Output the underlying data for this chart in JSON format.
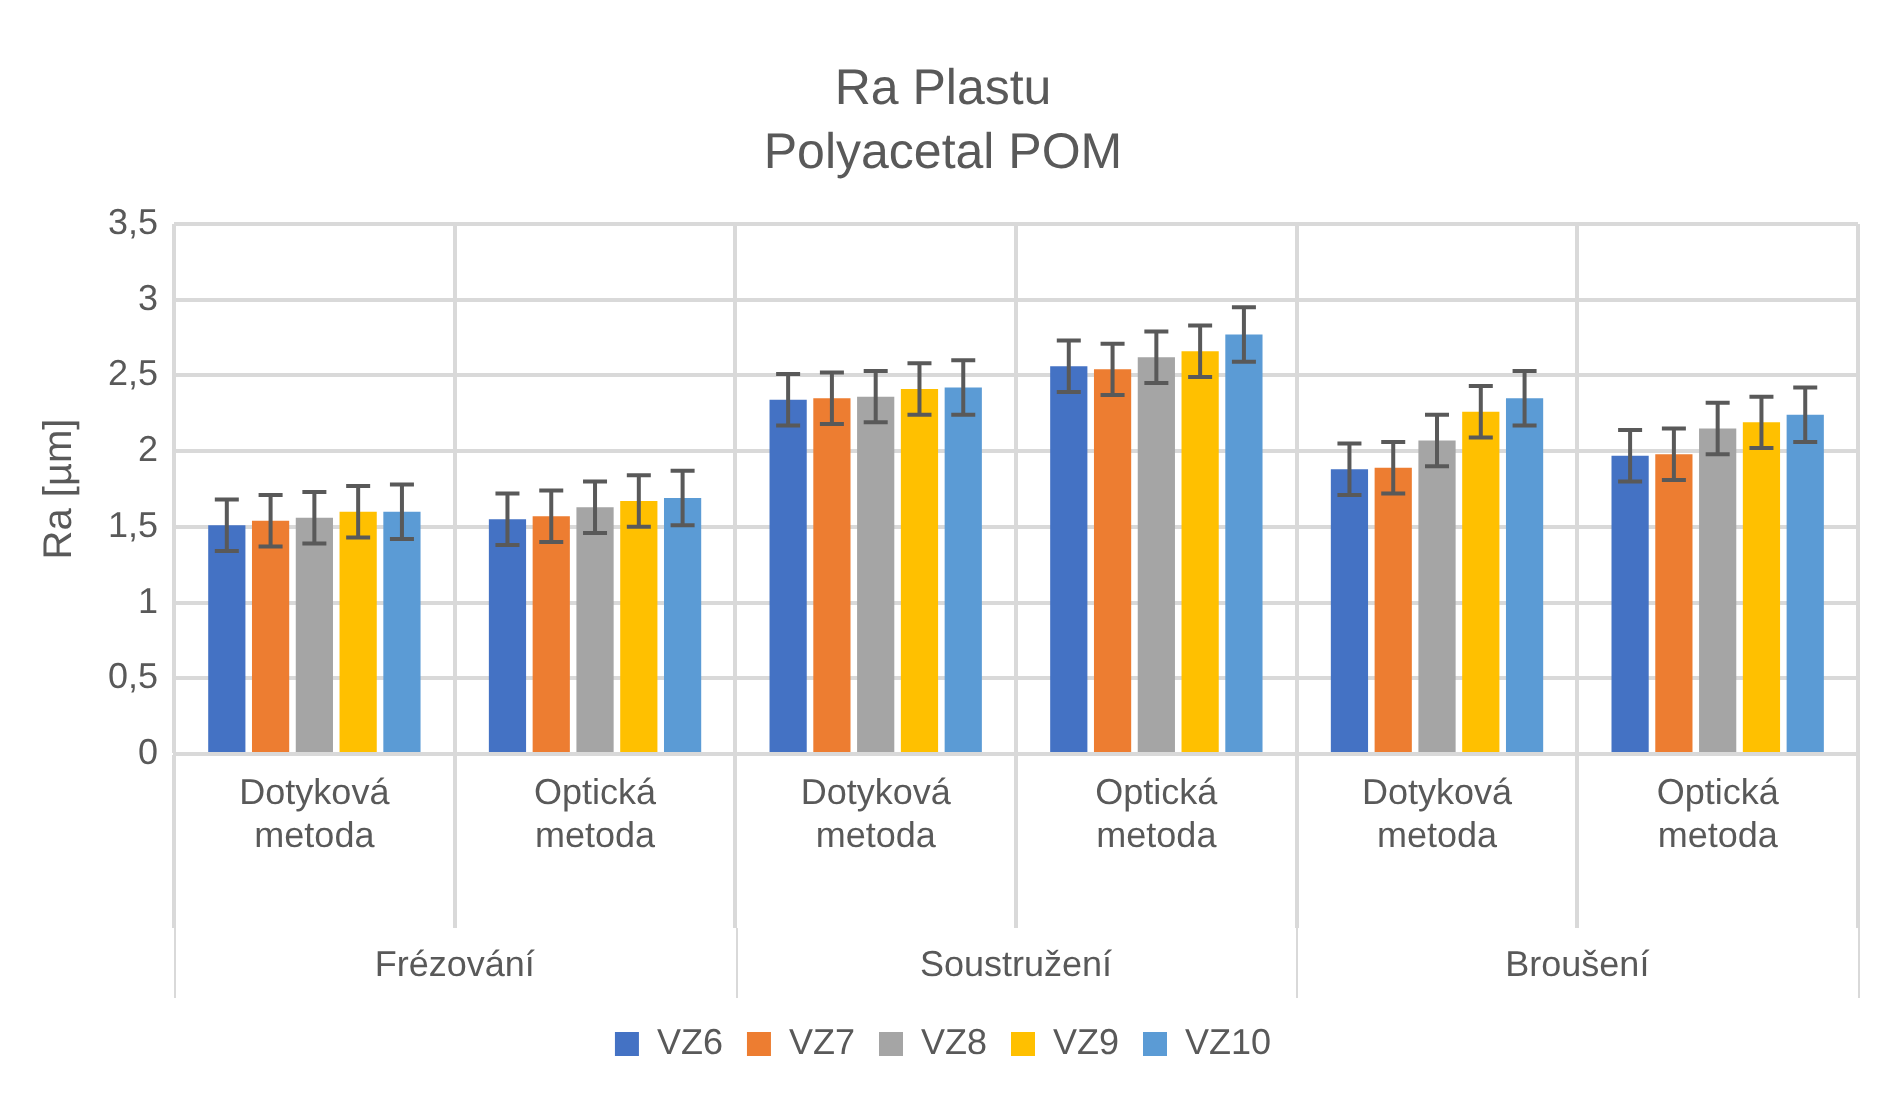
{
  "chart_data": {
    "type": "bar",
    "title": "Ra Plastu",
    "subtitle": "Polyacetal POM",
    "ylabel": "Ra [µm]",
    "categories": [
      "Dotyková metoda",
      "Optická metoda",
      "Dotyková metoda",
      "Optická metoda",
      "Dotyková metoda",
      "Optická metoda"
    ],
    "annotations": [
      "Frézování",
      "Soustružení",
      "Broušení"
    ],
    "series": [
      {
        "name": "VZ6",
        "color": "#4472c4",
        "values": [
          1.51,
          1.55,
          2.34,
          2.56,
          1.88,
          1.97
        ],
        "errors": [
          0.17,
          0.17,
          0.17,
          0.17,
          0.17,
          0.17
        ]
      },
      {
        "name": "VZ7",
        "color": "#ed7d31",
        "values": [
          1.54,
          1.57,
          2.35,
          2.54,
          1.89,
          1.98
        ],
        "errors": [
          0.17,
          0.17,
          0.17,
          0.17,
          0.17,
          0.17
        ]
      },
      {
        "name": "VZ8",
        "color": "#a5a5a5",
        "values": [
          1.56,
          1.63,
          2.36,
          2.62,
          2.07,
          2.15
        ],
        "errors": [
          0.17,
          0.17,
          0.17,
          0.17,
          0.17,
          0.17
        ]
      },
      {
        "name": "VZ9",
        "color": "#ffc000",
        "values": [
          1.6,
          1.67,
          2.41,
          2.66,
          2.26,
          2.19
        ],
        "errors": [
          0.17,
          0.17,
          0.17,
          0.17,
          0.17,
          0.17
        ]
      },
      {
        "name": "VZ10",
        "color": "#5b9bd5",
        "values": [
          1.6,
          1.69,
          2.42,
          2.77,
          2.35,
          2.24
        ],
        "errors": [
          0.18,
          0.18,
          0.18,
          0.18,
          0.18,
          0.18
        ]
      }
    ],
    "ylim": [
      0,
      3.5
    ],
    "yticks": [
      0,
      {
        "value": 0.5,
        "label": "0,5"
      },
      1,
      {
        "value": 1.5,
        "label": "1,5"
      },
      2,
      {
        "value": 2.5,
        "label": "2,5"
      },
      3,
      {
        "value": 3.5,
        "label": "3,5"
      }
    ],
    "grid": true,
    "legend": "bottom"
  }
}
